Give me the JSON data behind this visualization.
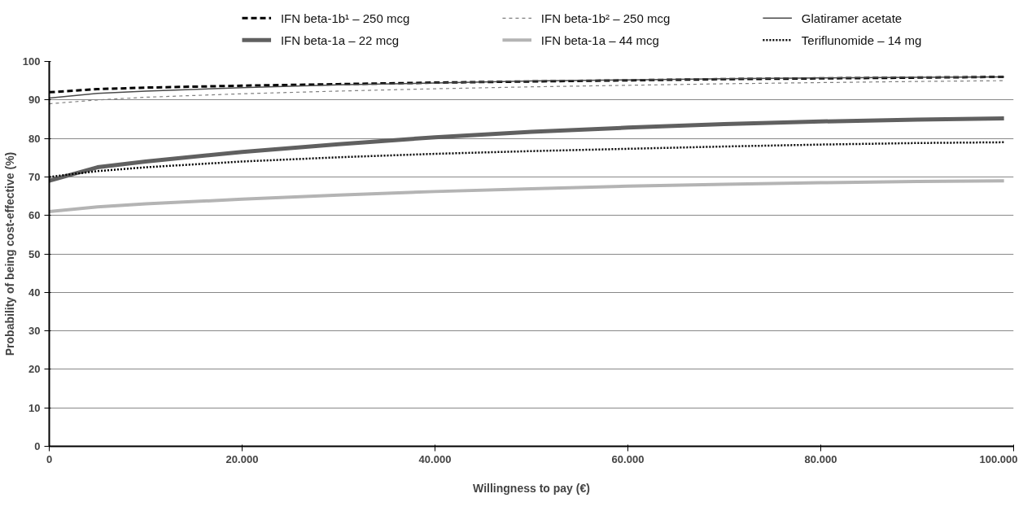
{
  "chart_data": {
    "type": "line",
    "xlabel": "Willingness to pay (€)",
    "ylabel": "Probability of being cost-effective (%)",
    "xlim": [
      0,
      100000
    ],
    "ylim": [
      0,
      100
    ],
    "xticks": [
      0,
      {
        "value": 20000,
        "label": "20.000"
      },
      {
        "value": 40000,
        "label": "40.000"
      },
      {
        "value": 60000,
        "label": "60.000"
      },
      {
        "value": 80000,
        "label": "80.000"
      },
      {
        "value": 100000,
        "label": "100.000"
      }
    ],
    "yticks": [
      0,
      10,
      20,
      30,
      40,
      50,
      60,
      70,
      80,
      90,
      100
    ],
    "grid": "y",
    "legend": "top",
    "marker": "none",
    "x": [
      0,
      5000,
      10000,
      20000,
      30000,
      40000,
      50000,
      60000,
      70000,
      80000,
      90000,
      99000
    ],
    "series": [
      {
        "name": "IFN beta-1b¹ – 250 mcg",
        "color": "#000000",
        "line_style": "dashed",
        "values": [
          92,
          92.8,
          93.2,
          93.7,
          94.1,
          94.5,
          94.8,
          95.1,
          95.4,
          95.6,
          95.8,
          96
        ]
      },
      {
        "name": "IFN beta-1b² – 250 mcg",
        "color": "#808080",
        "line_style": "dashed",
        "values": [
          89,
          90,
          90.7,
          91.6,
          92.3,
          92.9,
          93.4,
          93.8,
          94.2,
          94.5,
          94.8,
          95
        ]
      },
      {
        "name": "Glatiramer acetate",
        "color": "#4a4a4a",
        "line_style": "solid",
        "values": [
          90.5,
          91.7,
          92.3,
          93.2,
          93.9,
          94.4,
          94.9,
          95.2,
          95.5,
          95.7,
          95.9,
          96
        ]
      },
      {
        "name": "IFN beta-1a – 22 mcg",
        "color": "#606060",
        "line_style": "solid",
        "values": [
          69,
          72.5,
          74,
          76.5,
          78.5,
          80.3,
          81.7,
          82.8,
          83.7,
          84.4,
          84.9,
          85.2
        ]
      },
      {
        "name": "IFN beta-1a – 44 mcg",
        "color": "#b4b4b4",
        "line_style": "solid",
        "values": [
          61,
          62.2,
          63,
          64.2,
          65.3,
          66.2,
          66.9,
          67.6,
          68.1,
          68.5,
          68.8,
          69
        ]
      },
      {
        "name": "Teriflunomide – 14 mg",
        "color": "#000000",
        "line_style": "dotted",
        "values": [
          70,
          71.5,
          72.5,
          74,
          75.1,
          76,
          76.7,
          77.3,
          77.9,
          78.4,
          78.8,
          79
        ]
      }
    ]
  }
}
